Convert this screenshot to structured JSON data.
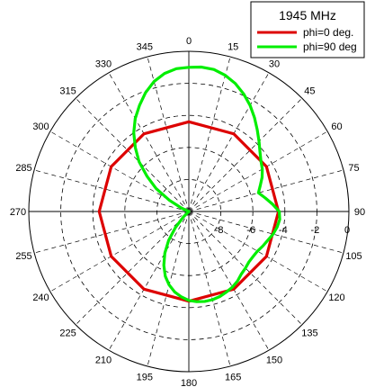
{
  "chart_data": {
    "type": "polar",
    "title": "1945 MHz",
    "angle_ticks": [
      0,
      15,
      30,
      45,
      60,
      75,
      90,
      105,
      120,
      135,
      150,
      165,
      180,
      195,
      210,
      225,
      240,
      255,
      270,
      285,
      300,
      315,
      330,
      345
    ],
    "angle_tick_labels": [
      "0",
      "15",
      "30",
      "45",
      "60",
      "75",
      "90",
      "105",
      "120",
      "135",
      "150",
      "165",
      "180",
      "195",
      "210",
      "225",
      "240",
      "255",
      "270",
      "285",
      "300",
      "315",
      "330",
      "345"
    ],
    "radial_ticks": [
      -8,
      -6,
      -4,
      -2,
      0
    ],
    "radial_tick_labels": [
      "-8",
      "-6",
      "-4",
      "-2",
      "0"
    ],
    "rlim": [
      -10,
      0
    ],
    "grid": true,
    "legend_position": "top-right",
    "series": [
      {
        "name": "phi=0 deg.",
        "color": "#dd0000",
        "theta": [
          0,
          30,
          60,
          90,
          120,
          150,
          180,
          210,
          240,
          270,
          300,
          330,
          360
        ],
        "r": [
          -4.4,
          -4.4,
          -4.4,
          -4.4,
          -4.4,
          -4.4,
          -4.4,
          -4.4,
          -4.4,
          -4.4,
          -4.4,
          -4.4,
          -4.4
        ]
      },
      {
        "name": "phi=90 deg",
        "color": "#00ee00",
        "theta": [
          0,
          5,
          10,
          15,
          20,
          25,
          30,
          35,
          40,
          45,
          50,
          55,
          60,
          65,
          70,
          75,
          80,
          85,
          90,
          95,
          100,
          105,
          110,
          115,
          120,
          125,
          130,
          135,
          140,
          145,
          150,
          155,
          160,
          165,
          170,
          175,
          180,
          185,
          190,
          195,
          200,
          205,
          210,
          215,
          220,
          225,
          230,
          235,
          240,
          245,
          250,
          255,
          260,
          265,
          270,
          275,
          280,
          285,
          290,
          295,
          300,
          305,
          310,
          315,
          320,
          325,
          330,
          335,
          340,
          345,
          350,
          355,
          360
        ],
        "r": [
          -1.0,
          -0.95,
          -1.0,
          -1.2,
          -1.5,
          -1.9,
          -2.35,
          -2.85,
          -3.35,
          -3.8,
          -4.2,
          -4.5,
          -4.7,
          -4.95,
          -5.25,
          -5.5,
          -5.15,
          -4.75,
          -4.35,
          -4.3,
          -4.4,
          -4.55,
          -4.75,
          -4.9,
          -5.05,
          -5.1,
          -5.1,
          -5.0,
          -4.9,
          -4.7,
          -4.55,
          -4.45,
          -4.35,
          -4.3,
          -4.3,
          -4.35,
          -4.45,
          -4.65,
          -4.9,
          -5.25,
          -5.7,
          -6.3,
          -7.0,
          -7.8,
          -8.7,
          -9.5,
          -10.0,
          -10.0,
          -10.0,
          -10.0,
          -10.0,
          -10.0,
          -10.0,
          -10.0,
          -10.0,
          -10.0,
          -10.0,
          -10.0,
          -10.0,
          -9.5,
          -8.6,
          -7.5,
          -6.6,
          -5.6,
          -4.8,
          -4.0,
          -3.3,
          -2.7,
          -2.1,
          -1.6,
          -1.25,
          -1.05,
          -1.0
        ]
      }
    ]
  }
}
